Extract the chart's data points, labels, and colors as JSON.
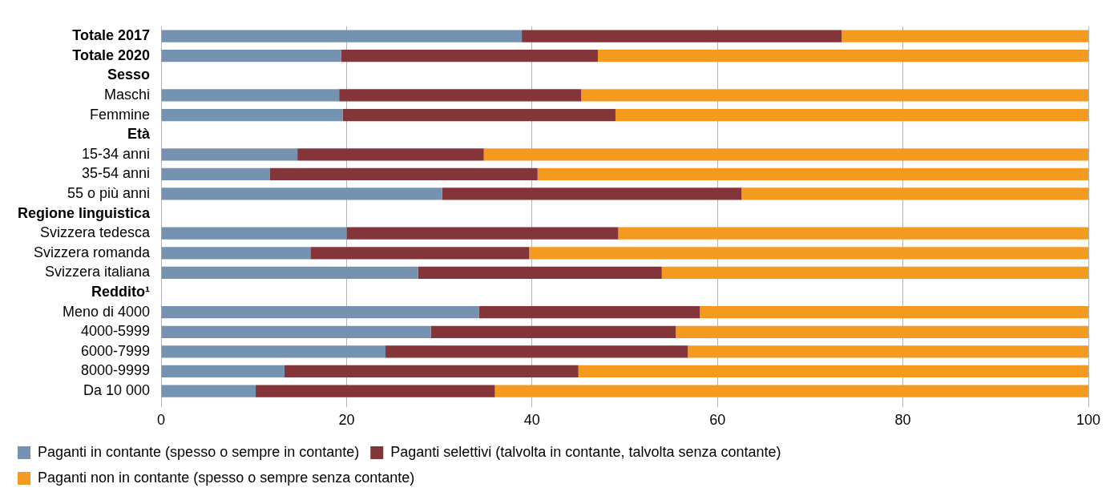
{
  "chart_data": {
    "type": "bar",
    "orientation": "horizontal",
    "stacked": true,
    "categories": [
      "Totale 2017",
      "Totale 2020",
      "Sesso",
      "Maschi",
      "Femmine",
      "Età",
      "15-34 anni",
      "35-54 anni",
      "55 o più anni",
      "Regione linguistica",
      "Svizzera tedesca",
      "Svizzera romanda",
      "Svizzera italiana",
      "Reddito¹",
      "Meno di 4000",
      "4000-5999",
      "6000-7999",
      "8000-9999",
      "Da 10 000"
    ],
    "series": [
      {
        "name": "Paganti in contante (spesso o sempre in contante)",
        "color": "#7593b0",
        "values": [
          38.9,
          19.4,
          null,
          19.2,
          19.6,
          null,
          14.7,
          11.7,
          30.3,
          null,
          20.0,
          16.1,
          27.7,
          null,
          34.3,
          29.1,
          24.2,
          13.3,
          10.2
        ]
      },
      {
        "name": "Paganti selettivi (talvolta in contante, talvolta senza contante)",
        "color": "#833539",
        "values": [
          34.5,
          27.7,
          null,
          26.1,
          29.4,
          null,
          20.1,
          28.9,
          32.3,
          null,
          29.3,
          23.6,
          26.3,
          null,
          23.8,
          26.4,
          32.6,
          31.7,
          25.8
        ]
      },
      {
        "name": "Paganti non in contante (spesso o sempre senza contante)",
        "color": "#f39a1f",
        "values": [
          26.6,
          52.9,
          null,
          54.7,
          51.0,
          null,
          65.2,
          59.4,
          37.4,
          null,
          50.7,
          60.3,
          46.0,
          null,
          41.9,
          44.5,
          43.2,
          55.0,
          64.0
        ]
      }
    ],
    "xlim": [
      0,
      100
    ],
    "xticks": [
      0,
      20,
      40,
      60,
      80,
      100
    ],
    "grid": "x",
    "legend": "bottom"
  }
}
